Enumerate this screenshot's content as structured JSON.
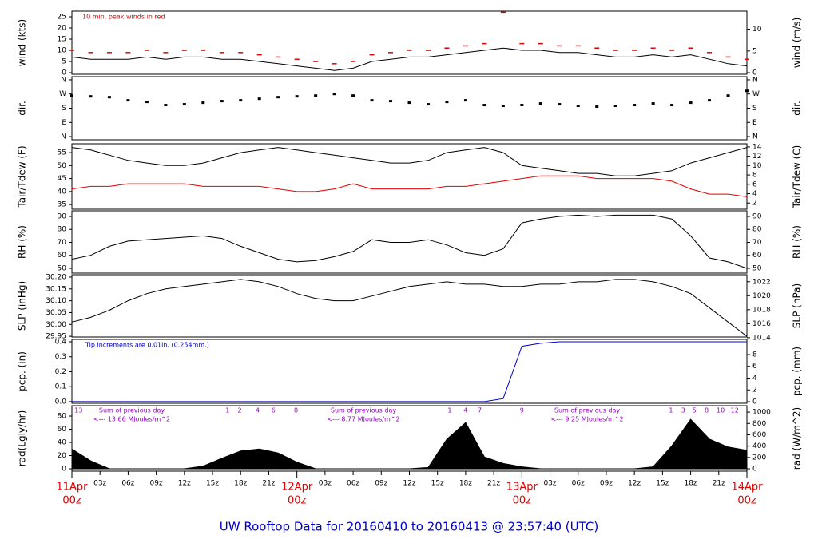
{
  "chart_data": [
    {
      "type": "line",
      "ylabel": "wind (kts)",
      "y2label": "wind (m/s)",
      "note": "10 min. peak winds in red",
      "note_color": "#e00000",
      "ylim": [
        -0.7,
        27.5
      ],
      "yticks": [
        0,
        5,
        10,
        15,
        20,
        25
      ],
      "y2lim": [
        -0.36,
        14.15
      ],
      "y2ticks": [
        0,
        5,
        10
      ],
      "x": [
        0,
        2,
        4,
        6,
        8,
        10,
        12,
        14,
        16,
        18,
        20,
        22,
        24,
        26,
        28,
        30,
        32,
        34,
        36,
        38,
        40,
        42,
        44,
        46,
        48,
        50,
        52,
        54,
        56,
        58,
        60,
        62,
        64,
        66,
        68,
        70,
        72
      ],
      "series": [
        {
          "color": "#000000",
          "values": [
            7,
            6,
            6,
            6,
            7,
            6,
            7,
            7,
            6,
            6,
            5,
            4,
            3,
            2,
            1,
            2,
            5,
            6,
            7,
            7,
            8,
            9,
            10,
            11,
            10,
            10,
            9,
            9,
            8,
            7,
            7,
            8,
            7,
            8,
            6,
            4,
            3
          ]
        },
        {
          "color": "#e00000",
          "mark": "dash",
          "values": [
            10,
            9,
            9,
            9,
            10,
            9,
            10,
            10,
            9,
            9,
            8,
            7,
            6,
            5,
            4,
            5,
            8,
            9,
            10,
            10,
            11,
            12,
            13,
            27,
            13,
            13,
            12,
            12,
            11,
            10,
            10,
            11,
            10,
            11,
            9,
            7,
            6
          ]
        }
      ]
    },
    {
      "type": "scatter",
      "ylabel": "dir.",
      "y2label": "dir.",
      "ylim": [
        -20,
        380
      ],
      "yticks": [
        {
          "value": 0,
          "label": "N"
        },
        {
          "value": 90,
          "label": "E"
        },
        {
          "value": 180,
          "label": "S"
        },
        {
          "value": 270,
          "label": "W"
        },
        {
          "value": 360,
          "label": "N"
        }
      ],
      "y2lim": [
        -20,
        380
      ],
      "y2ticks": [
        {
          "value": 0,
          "label": "N"
        },
        {
          "value": 90,
          "label": "E"
        },
        {
          "value": 180,
          "label": "S"
        },
        {
          "value": 270,
          "label": "W"
        },
        {
          "value": 360,
          "label": "N"
        }
      ],
      "x": [
        0,
        2,
        4,
        6,
        8,
        10,
        12,
        14,
        16,
        18,
        20,
        22,
        24,
        26,
        28,
        30,
        32,
        34,
        36,
        38,
        40,
        42,
        44,
        46,
        48,
        50,
        52,
        54,
        56,
        58,
        60,
        62,
        64,
        66,
        68,
        70,
        72
      ],
      "series": [
        {
          "color": "#000000",
          "values": [
            260,
            255,
            250,
            230,
            220,
            200,
            205,
            215,
            225,
            230,
            240,
            250,
            255,
            260,
            270,
            260,
            230,
            225,
            215,
            205,
            220,
            230,
            200,
            195,
            200,
            210,
            205,
            195,
            190,
            195,
            200,
            210,
            200,
            215,
            230,
            260,
            290
          ]
        }
      ]
    },
    {
      "type": "line",
      "ylabel": "Tair/Tdew (F)",
      "y2label": "Tair/Tdew (C)",
      "ylim": [
        33.2,
        58.4
      ],
      "yticks": [
        35,
        40,
        45,
        50,
        55
      ],
      "y2lim": [
        0.67,
        14.67
      ],
      "y2ticks": [
        2,
        4,
        6,
        8,
        10,
        12,
        14
      ],
      "x": [
        0,
        2,
        4,
        6,
        8,
        10,
        12,
        14,
        16,
        18,
        20,
        22,
        24,
        26,
        28,
        30,
        32,
        34,
        36,
        38,
        40,
        42,
        44,
        46,
        48,
        50,
        52,
        54,
        56,
        58,
        60,
        62,
        64,
        66,
        68,
        70,
        72
      ],
      "series": [
        {
          "color": "#000000",
          "values": [
            57,
            56,
            54,
            52,
            51,
            50,
            50,
            51,
            53,
            55,
            56,
            57,
            56,
            55,
            54,
            53,
            52,
            51,
            51,
            52,
            55,
            56,
            57,
            55,
            50,
            49,
            48,
            47,
            47,
            46,
            46,
            47,
            48,
            51,
            53,
            55,
            57
          ]
        },
        {
          "color": "#e00000",
          "values": [
            41,
            42,
            42,
            43,
            43,
            43,
            43,
            42,
            42,
            42,
            42,
            41,
            40,
            40,
            41,
            43,
            41,
            41,
            41,
            41,
            42,
            42,
            43,
            44,
            45,
            46,
            46,
            46,
            45,
            45,
            45,
            45,
            44,
            41,
            39,
            39,
            38
          ]
        }
      ]
    },
    {
      "type": "line",
      "ylabel": "RH (%)",
      "y2label": "RH (%)",
      "ylim": [
        46.3,
        94.3
      ],
      "yticks": [
        50,
        60,
        70,
        80,
        90
      ],
      "y2lim": [
        46.3,
        94.3
      ],
      "y2ticks": [
        50,
        60,
        70,
        80,
        90
      ],
      "x": [
        0,
        2,
        4,
        6,
        8,
        10,
        12,
        14,
        16,
        18,
        20,
        22,
        24,
        26,
        28,
        30,
        32,
        34,
        36,
        38,
        40,
        42,
        44,
        46,
        48,
        50,
        52,
        54,
        56,
        58,
        60,
        62,
        64,
        66,
        68,
        70,
        72
      ],
      "series": [
        {
          "color": "#000000",
          "values": [
            57,
            60,
            67,
            71,
            72,
            73,
            74,
            75,
            73,
            67,
            62,
            57,
            55,
            56,
            59,
            63,
            72,
            70,
            70,
            72,
            68,
            62,
            60,
            65,
            85,
            88,
            90,
            91,
            90,
            91,
            91,
            91,
            88,
            75,
            58,
            55,
            50
          ]
        }
      ]
    },
    {
      "type": "line",
      "ylabel": "SLP (inHg)",
      "y2label": "SLP (hPa)",
      "ylim": [
        29.947,
        30.21
      ],
      "yticks": [
        29.95,
        {
          "value": 30.0,
          "label": "30.00"
        },
        30.05,
        {
          "value": 30.1,
          "label": "30.10"
        },
        30.15,
        {
          "value": 30.2,
          "label": "30.20"
        }
      ],
      "y2lim": [
        1014.1,
        1023.0
      ],
      "y2ticks": [
        1014,
        1016,
        1018,
        1020,
        1022
      ],
      "x": [
        0,
        2,
        4,
        6,
        8,
        10,
        12,
        14,
        16,
        18,
        20,
        22,
        24,
        26,
        28,
        30,
        32,
        34,
        36,
        38,
        40,
        42,
        44,
        46,
        48,
        50,
        52,
        54,
        56,
        58,
        60,
        62,
        64,
        66,
        68,
        70,
        72
      ],
      "series": [
        {
          "color": "#000000",
          "values": [
            30.01,
            30.03,
            30.06,
            30.1,
            30.13,
            30.15,
            30.16,
            30.17,
            30.18,
            30.19,
            30.18,
            30.16,
            30.13,
            30.11,
            30.1,
            30.1,
            30.12,
            30.14,
            30.16,
            30.17,
            30.18,
            30.17,
            30.17,
            30.16,
            30.16,
            30.17,
            30.17,
            30.18,
            30.18,
            30.19,
            30.19,
            30.18,
            30.16,
            30.13,
            30.07,
            30.01,
            29.95
          ]
        }
      ]
    },
    {
      "type": "line",
      "ylabel": "pcp. (in)",
      "y2label": "pcp. (mm)",
      "note": "Tip increments are 0.01in. (0.254mm.)",
      "note_color": "#0000cc",
      "ylim": [
        -0.011,
        0.416
      ],
      "yticks": [
        {
          "value": 0,
          "label": "0.0"
        },
        0.1,
        0.2,
        0.3,
        0.4
      ],
      "y2lim": [
        -0.27,
        10.57
      ],
      "y2ticks": [
        0,
        2,
        4,
        6,
        8
      ],
      "x": [
        0,
        2,
        4,
        6,
        8,
        10,
        12,
        14,
        16,
        18,
        20,
        22,
        24,
        26,
        28,
        30,
        32,
        34,
        36,
        38,
        40,
        42,
        44,
        46,
        48,
        50,
        52,
        54,
        56,
        58,
        60,
        62,
        64,
        66,
        68,
        70,
        72
      ],
      "series": [
        {
          "color": "#0000cc",
          "values": [
            0,
            0,
            0,
            0,
            0,
            0,
            0,
            0,
            0,
            0,
            0,
            0,
            0,
            0,
            0,
            0,
            0,
            0,
            0,
            0,
            0,
            0,
            0,
            0.02,
            0.37,
            0.39,
            0.4,
            0.4,
            0.4,
            0.4,
            0.4,
            0.4,
            0.4,
            0.4,
            0.4,
            0.4,
            0.4
          ]
        }
      ]
    },
    {
      "type": "area",
      "ylabel": "rad(Lgly/hr)",
      "y2label": "rad (W/m^2)",
      "ylim": [
        -3.6,
        95.8
      ],
      "yticks": [
        0,
        20,
        40,
        60,
        80
      ],
      "y2lim": [
        -42,
        1114
      ],
      "y2ticks": [
        0,
        200,
        400,
        600,
        800,
        1000
      ],
      "x": [
        0,
        2,
        4,
        6,
        8,
        10,
        12,
        14,
        16,
        18,
        20,
        22,
        24,
        26,
        28,
        30,
        32,
        34,
        36,
        38,
        40,
        42,
        44,
        46,
        48,
        50,
        52,
        54,
        56,
        58,
        60,
        62,
        64,
        66,
        68,
        70,
        72
      ],
      "series": [
        {
          "color": "#000000",
          "values": [
            30,
            12,
            0,
            0,
            0,
            0,
            0,
            4,
            16,
            27,
            30,
            24,
            10,
            0,
            0,
            0,
            0,
            0,
            0,
            2,
            45,
            70,
            18,
            8,
            3,
            0,
            0,
            0,
            0,
            0,
            0,
            3,
            35,
            75,
            45,
            33,
            28
          ]
        }
      ],
      "sum_notes": [
        {
          "text": "Sum of previous day",
          "sub": "<--- 13.66 MJoules/m^2"
        },
        {
          "text": "Sum of previous day",
          "sub": "<--- 8.77 MJoules/m^2"
        },
        {
          "text": "Sum of previous day",
          "sub": "<--- 9.25 MJoules/m^2"
        }
      ],
      "hour_marks": [
        {
          "x": 0.7,
          "label": "13"
        },
        {
          "x": 16.6,
          "label": "1"
        },
        {
          "x": 17.9,
          "label": "2"
        },
        {
          "x": 19.8,
          "label": "4"
        },
        {
          "x": 21.5,
          "label": "6"
        },
        {
          "x": 23.9,
          "label": "8"
        },
        {
          "x": 40.3,
          "label": "1"
        },
        {
          "x": 42,
          "label": "4"
        },
        {
          "x": 43.5,
          "label": "7"
        },
        {
          "x": 48,
          "label": "9"
        },
        {
          "x": 63.9,
          "label": "1"
        },
        {
          "x": 65.2,
          "label": "3"
        },
        {
          "x": 66.4,
          "label": "5"
        },
        {
          "x": 67.7,
          "label": "8"
        },
        {
          "x": 69.2,
          "label": "10"
        },
        {
          "x": 70.7,
          "label": "12"
        }
      ],
      "xlim": [
        0,
        72
      ],
      "xticks": [
        {
          "value": 3,
          "label": "03z"
        },
        {
          "value": 6,
          "label": "06z"
        },
        {
          "value": 9,
          "label": "09z"
        },
        {
          "value": 12,
          "label": "12z"
        },
        {
          "value": 15,
          "label": "15z"
        },
        {
          "value": 18,
          "label": "18z"
        },
        {
          "value": 21,
          "label": "21z"
        },
        {
          "value": 27,
          "label": "03z"
        },
        {
          "value": 30,
          "label": "06z"
        },
        {
          "value": 33,
          "label": "09z"
        },
        {
          "value": 36,
          "label": "12z"
        },
        {
          "value": 39,
          "label": "15z"
        },
        {
          "value": 42,
          "label": "18z"
        },
        {
          "value": 45,
          "label": "21z"
        },
        {
          "value": 51,
          "label": "03z"
        },
        {
          "value": 54,
          "label": "06z"
        },
        {
          "value": 57,
          "label": "09z"
        },
        {
          "value": 60,
          "label": "12z"
        },
        {
          "value": 63,
          "label": "15z"
        },
        {
          "value": 66,
          "label": "18z"
        },
        {
          "value": 69,
          "label": "21z"
        }
      ],
      "day_ticks": [
        {
          "value": 0,
          "label": "11Apr",
          "sublabel": "00z"
        },
        {
          "value": 24,
          "label": "12Apr",
          "sublabel": "00z"
        },
        {
          "value": 48,
          "label": "13Apr",
          "sublabel": "00z"
        },
        {
          "value": 72,
          "label": "14Apr",
          "sublabel": "00z"
        }
      ],
      "title": "UW Rooftop Data for 20160410  to  20160413 @ 23:57:40  (UTC)"
    }
  ]
}
